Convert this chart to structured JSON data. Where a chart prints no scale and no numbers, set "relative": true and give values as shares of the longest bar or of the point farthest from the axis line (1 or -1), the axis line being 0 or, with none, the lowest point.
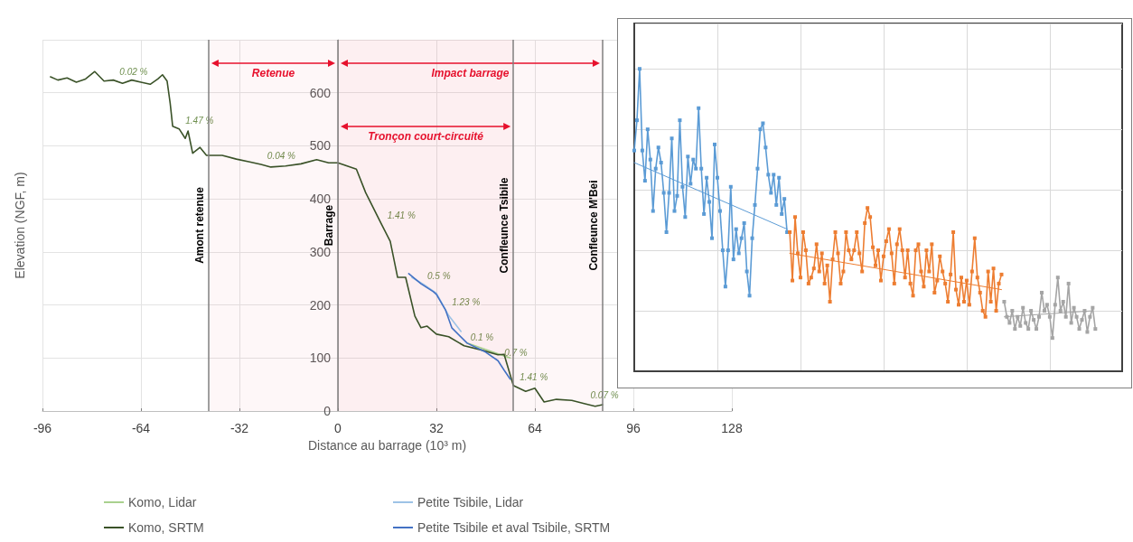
{
  "chart_data": [
    {
      "type": "line",
      "xlabel": "Distance au barrage (10³ m)",
      "ylabel": "Elevation (NGF, m)",
      "xlim": [
        -96,
        128
      ],
      "xticks": [
        -96,
        -64,
        -32,
        0,
        32,
        64,
        96,
        128
      ],
      "ylim": [
        0,
        700
      ],
      "yticks": [
        0,
        100,
        200,
        300,
        400,
        500,
        600
      ],
      "grid": true,
      "legend": "bottom",
      "marker": "none",
      "line_style": "solid",
      "series": [
        {
          "name": "Komo, Lidar",
          "color": "#a9d18e",
          "x": [
            42,
            46,
            50,
            54,
            56
          ],
          "values": [
            128,
            120,
            112,
            104,
            100
          ]
        },
        {
          "name": "Petite Tsibile, Lidar",
          "color": "#9dc3e6",
          "x": [
            24,
            28,
            32,
            36,
            40
          ],
          "values": [
            252,
            238,
            222,
            180,
            150
          ]
        },
        {
          "name": "Komo, SRTM",
          "color": "#3a5228",
          "x": [
            -93.4,
            -91,
            -88,
            -85,
            -82,
            -79,
            -76,
            -73,
            -70,
            -67,
            -64,
            -61,
            -58.5,
            -57,
            -55.5,
            -54.5,
            -53.7,
            -51.6,
            -49.6,
            -48.7,
            -47.2,
            -44.8,
            -42.7,
            -37.6,
            -33,
            -29,
            -25,
            -21.8,
            -17,
            -12,
            -6.9,
            -3,
            0,
            3,
            6,
            9,
            14,
            17,
            19.4,
            22,
            25,
            27,
            29,
            32,
            36,
            41,
            46,
            52,
            54,
            57,
            61,
            64,
            67,
            71,
            76,
            80,
            83.6,
            86
          ],
          "values": [
            630,
            624,
            628,
            620,
            626,
            640,
            622,
            624,
            618,
            624,
            620,
            616,
            626,
            634,
            622,
            580,
            537,
            532,
            514,
            528,
            486,
            497,
            482,
            482,
            475,
            470,
            465,
            460,
            462,
            466,
            474,
            468,
            468,
            462,
            456,
            412,
            354,
            320,
            252,
            252,
            179,
            157,
            160,
            145,
            140,
            123,
            116,
            106,
            107,
            48,
            37,
            43,
            17,
            22,
            20,
            14,
            9,
            12
          ]
        },
        {
          "name": "Petite Tsibile et aval Tsibile, SRTM",
          "color": "#4472c4",
          "x": [
            23,
            27,
            31,
            32,
            35,
            37,
            42,
            48,
            52,
            54,
            56
          ],
          "values": [
            259,
            240,
            225,
            220,
            190,
            157,
            128,
            111,
            95,
            77,
            60
          ]
        }
      ],
      "ref_lines": [
        {
          "axis": "x",
          "value": -42,
          "label": "Amont retenue",
          "color": "#7f7f7f"
        },
        {
          "axis": "x",
          "value": 0,
          "label": "Barrage",
          "color": "#7f7f7f"
        },
        {
          "axis": "x",
          "value": 57,
          "label": "Confleunce Tsibile",
          "color": "#7f7f7f"
        },
        {
          "axis": "x",
          "value": 86,
          "label": "Confleunce M'Bei",
          "color": "#7f7f7f"
        }
      ],
      "bands": [
        {
          "axis": "x",
          "from": -42,
          "to": 0,
          "label": "Retenue",
          "color": "#e8112d"
        },
        {
          "axis": "x",
          "from": 0,
          "to": 86,
          "label": "Impact barrage",
          "color": "#e8112d"
        },
        {
          "axis": "x",
          "from": 0,
          "to": 57,
          "label": "Tronçon court-circuité",
          "color": "#e8112d"
        }
      ],
      "annotations": [
        {
          "text": "0.02 %",
          "x": -73,
          "y": 624
        },
        {
          "text": "1.47 %",
          "x": -51.6,
          "y": 532
        },
        {
          "text": "0.04 %",
          "x": -25,
          "y": 465
        },
        {
          "text": "1.41 %",
          "x": 14,
          "y": 354
        },
        {
          "text": "0.5 %",
          "x": 27,
          "y": 240
        },
        {
          "text": "1.23 %",
          "x": 35,
          "y": 190
        },
        {
          "text": "0.1 %",
          "x": 41,
          "y": 123
        },
        {
          "text": "0.7 %",
          "x": 52,
          "y": 95
        },
        {
          "text": "1.41 %",
          "x": 57,
          "y": 48
        },
        {
          "text": "0.07 %",
          "x": 80,
          "y": 14
        }
      ]
    },
    {
      "type": "line",
      "relative": true,
      "grid": true,
      "marker": "square",
      "categories": [
        null,
        null,
        null,
        null,
        null,
        null,
        null,
        null,
        null,
        null,
        null,
        null,
        null,
        null,
        null,
        null,
        null,
        null,
        null,
        null,
        null,
        null,
        null,
        null,
        null,
        null,
        null,
        null,
        null,
        null,
        null,
        null,
        null,
        null,
        null,
        null,
        null,
        null,
        null,
        null,
        null,
        null,
        null,
        null,
        null,
        null,
        null,
        null,
        null,
        null,
        null,
        null,
        null,
        null,
        null,
        null,
        null,
        null,
        null,
        null,
        null,
        null,
        null,
        null,
        null,
        null,
        null,
        null,
        null,
        null,
        null,
        null,
        null,
        null,
        null,
        null,
        null,
        null,
        null,
        null,
        null,
        null,
        null,
        null,
        null,
        null,
        null,
        null,
        null,
        null,
        null,
        null,
        null,
        null,
        null,
        null,
        null,
        null,
        null,
        null,
        null,
        null,
        null,
        null,
        null,
        null,
        null,
        null,
        null,
        null,
        null,
        null,
        null,
        null,
        null,
        null,
        null,
        null,
        null,
        null,
        null,
        null,
        null,
        null,
        null,
        null,
        null,
        null,
        null,
        null,
        null,
        null,
        null,
        null,
        null,
        null,
        null,
        null,
        null,
        null,
        null,
        null,
        null,
        null,
        null,
        null,
        null,
        null,
        null,
        null,
        null,
        null,
        null,
        null,
        null,
        null,
        null,
        null,
        null,
        null,
        null,
        null,
        null,
        null,
        null,
        null,
        null,
        null,
        null,
        null,
        null,
        null,
        null,
        null,
        null,
        null,
        null,
        null,
        null,
        null,
        null,
        null,
        null
      ],
      "series": [
        {
          "color": "#5b9bd5",
          "values": [
            0.73,
            0.83,
            1.0,
            0.73,
            0.63,
            0.8,
            0.7,
            0.53,
            0.67,
            0.74,
            0.69,
            0.59,
            0.46,
            0.59,
            0.77,
            0.53,
            0.58,
            0.83,
            0.61,
            0.51,
            0.71,
            0.62,
            0.7,
            0.67,
            0.87,
            0.67,
            0.52,
            0.64,
            0.56,
            0.44,
            0.75,
            0.64,
            0.53,
            0.4,
            0.28,
            0.4,
            0.61,
            0.37,
            0.47,
            0.39,
            0.44,
            0.49,
            0.33,
            0.25,
            0.44,
            0.55,
            0.67,
            0.8,
            0.82,
            0.74,
            0.65,
            0.59,
            0.65,
            0.55,
            0.64,
            0.52,
            0.57,
            0.46,
            null,
            null,
            null,
            null,
            null,
            null,
            null,
            null,
            null,
            null,
            null,
            null,
            null,
            null,
            null,
            null,
            null,
            null,
            null,
            null,
            null,
            null,
            null,
            null,
            null,
            null,
            null,
            null,
            null,
            null,
            null,
            null,
            null,
            null,
            null,
            null,
            null,
            null,
            null,
            null,
            null,
            null,
            null,
            null,
            null,
            null,
            null,
            null,
            null,
            null,
            null,
            null,
            null,
            null,
            null,
            null,
            null,
            null,
            null,
            null,
            null,
            null,
            null,
            null,
            null,
            null,
            null,
            null,
            null,
            null,
            null,
            null,
            null,
            null,
            null,
            null,
            null,
            null,
            null,
            null,
            null,
            null,
            null,
            null,
            null,
            null,
            null,
            null,
            null,
            null,
            null,
            null,
            null,
            null,
            null,
            null,
            null,
            null,
            null,
            null,
            null,
            null,
            null,
            null,
            null,
            null,
            null,
            null,
            null,
            null,
            null,
            null,
            null,
            null,
            null,
            null,
            null,
            null,
            null,
            null,
            null,
            null,
            null,
            null,
            null
          ]
        },
        {
          "color": "#ed7d31",
          "values": [
            null,
            null,
            null,
            null,
            null,
            null,
            null,
            null,
            null,
            null,
            null,
            null,
            null,
            null,
            null,
            null,
            null,
            null,
            null,
            null,
            null,
            null,
            null,
            null,
            null,
            null,
            null,
            null,
            null,
            null,
            null,
            null,
            null,
            null,
            null,
            null,
            null,
            null,
            null,
            null,
            null,
            null,
            null,
            null,
            null,
            null,
            null,
            null,
            null,
            null,
            null,
            null,
            null,
            null,
            null,
            null,
            null,
            null,
            0.46,
            0.3,
            0.51,
            0.39,
            0.31,
            0.46,
            0.4,
            0.29,
            0.31,
            0.34,
            0.42,
            0.33,
            0.39,
            0.29,
            0.35,
            0.23,
            0.37,
            0.46,
            0.39,
            0.29,
            0.33,
            0.46,
            0.4,
            0.37,
            0.4,
            0.46,
            0.39,
            0.33,
            0.49,
            0.54,
            0.51,
            0.41,
            0.35,
            0.4,
            0.3,
            0.38,
            0.43,
            0.47,
            0.39,
            0.29,
            0.42,
            0.47,
            0.4,
            0.31,
            0.4,
            0.29,
            0.25,
            0.4,
            0.42,
            0.33,
            0.28,
            0.4,
            0.33,
            0.42,
            0.26,
            0.3,
            0.38,
            0.33,
            0.29,
            0.23,
            0.32,
            0.46,
            0.27,
            0.22,
            0.31,
            0.23,
            0.3,
            0.22,
            0.33,
            0.44,
            0.31,
            0.26,
            0.2,
            0.18,
            0.33,
            0.23,
            0.34,
            0.2,
            0.29,
            0.32,
            null,
            null,
            null,
            null,
            null,
            null,
            null,
            null,
            null,
            null,
            null,
            null,
            null,
            null,
            null,
            null,
            null,
            null,
            null,
            null,
            null,
            null,
            null,
            null,
            null,
            null,
            null,
            null,
            null,
            null,
            null,
            null,
            null,
            null,
            null,
            null,
            null,
            null,
            null,
            null,
            null,
            null,
            null,
            null,
            null
          ]
        },
        {
          "color": "#a5a5a5",
          "values": [
            null,
            null,
            null,
            null,
            null,
            null,
            null,
            null,
            null,
            null,
            null,
            null,
            null,
            null,
            null,
            null,
            null,
            null,
            null,
            null,
            null,
            null,
            null,
            null,
            null,
            null,
            null,
            null,
            null,
            null,
            null,
            null,
            null,
            null,
            null,
            null,
            null,
            null,
            null,
            null,
            null,
            null,
            null,
            null,
            null,
            null,
            null,
            null,
            null,
            null,
            null,
            null,
            null,
            null,
            null,
            null,
            null,
            null,
            null,
            null,
            null,
            null,
            null,
            null,
            null,
            null,
            null,
            null,
            null,
            null,
            null,
            null,
            null,
            null,
            null,
            null,
            null,
            null,
            null,
            null,
            null,
            null,
            null,
            null,
            null,
            null,
            null,
            null,
            null,
            null,
            null,
            null,
            null,
            null,
            null,
            null,
            null,
            null,
            null,
            null,
            null,
            null,
            null,
            null,
            null,
            null,
            null,
            null,
            null,
            null,
            null,
            null,
            null,
            null,
            null,
            null,
            null,
            null,
            null,
            null,
            null,
            null,
            null,
            null,
            null,
            null,
            null,
            null,
            null,
            null,
            null,
            null,
            null,
            null,
            null,
            null,
            null,
            null,
            0.23,
            0.18,
            0.16,
            0.2,
            0.14,
            0.18,
            0.15,
            0.21,
            0.16,
            0.14,
            0.2,
            0.17,
            0.14,
            0.18,
            0.26,
            0.2,
            0.22,
            0.18,
            0.11,
            0.22,
            0.31,
            0.2,
            0.23,
            0.18,
            0.29,
            0.16,
            0.21,
            0.18,
            0.14,
            0.17,
            0.2,
            0.13,
            0.18,
            0.21,
            0.14,
            null,
            null,
            null,
            null,
            null,
            null,
            null,
            null,
            null,
            null
          ]
        },
        {
          "color": "#5b9bd5",
          "marker": "none",
          "values": [
            0.69,
            null,
            null,
            null,
            null,
            null,
            null,
            null,
            null,
            null,
            null,
            null,
            null,
            null,
            null,
            null,
            null,
            null,
            null,
            null,
            null,
            null,
            null,
            null,
            null,
            null,
            null,
            null,
            null,
            null,
            null,
            null,
            null,
            null,
            null,
            null,
            null,
            null,
            null,
            null,
            null,
            null,
            null,
            null,
            null,
            null,
            null,
            null,
            null,
            null,
            null,
            null,
            null,
            null,
            null,
            null,
            null,
            0.47,
            null,
            null,
            null,
            null,
            null,
            null,
            null,
            null,
            null,
            null,
            null,
            null,
            null,
            null,
            null,
            null,
            null,
            null,
            null,
            null,
            null,
            null,
            null,
            null,
            null,
            null,
            null,
            null,
            null,
            null,
            null,
            null,
            null,
            null,
            null,
            null,
            null,
            null,
            null,
            null,
            null,
            null,
            null,
            null,
            null,
            null,
            null,
            null,
            null,
            null,
            null,
            null,
            null,
            null,
            null,
            null,
            null,
            null,
            null,
            null,
            null,
            null,
            null,
            null,
            null,
            null,
            null,
            null,
            null,
            null,
            null,
            null,
            null,
            null,
            null,
            null,
            null,
            null,
            null,
            null,
            null,
            null,
            null,
            null,
            null,
            null,
            null,
            null,
            null,
            null,
            null,
            null,
            null,
            null,
            null,
            null,
            null,
            null,
            null,
            null,
            null,
            null,
            null,
            null,
            null,
            null,
            null,
            null,
            null,
            null,
            null,
            null,
            null,
            null,
            null,
            null,
            null,
            null,
            null,
            null,
            null,
            null,
            null,
            null,
            null
          ]
        },
        {
          "color": "#ed7d31",
          "marker": "none",
          "values": [
            null,
            null,
            null,
            null,
            null,
            null,
            null,
            null,
            null,
            null,
            null,
            null,
            null,
            null,
            null,
            null,
            null,
            null,
            null,
            null,
            null,
            null,
            null,
            null,
            null,
            null,
            null,
            null,
            null,
            null,
            null,
            null,
            null,
            null,
            null,
            null,
            null,
            null,
            null,
            null,
            null,
            null,
            null,
            null,
            null,
            null,
            null,
            null,
            null,
            null,
            null,
            null,
            null,
            null,
            null,
            null,
            null,
            null,
            0.39,
            null,
            null,
            null,
            null,
            null,
            null,
            null,
            null,
            null,
            null,
            null,
            null,
            null,
            null,
            null,
            null,
            null,
            null,
            null,
            null,
            null,
            null,
            null,
            null,
            null,
            null,
            null,
            null,
            null,
            null,
            null,
            null,
            null,
            null,
            null,
            null,
            null,
            null,
            null,
            null,
            null,
            null,
            null,
            null,
            null,
            null,
            null,
            null,
            null,
            null,
            null,
            null,
            null,
            null,
            null,
            null,
            null,
            null,
            null,
            null,
            null,
            null,
            null,
            null,
            null,
            null,
            null,
            null,
            null,
            null,
            null,
            null,
            null,
            null,
            null,
            null,
            null,
            null,
            0.27,
            null,
            null,
            null,
            null,
            null,
            null,
            null,
            null,
            null,
            null,
            null,
            null,
            null,
            null,
            null,
            null,
            null,
            null,
            null,
            null,
            null,
            null,
            null,
            null,
            null,
            null,
            null,
            null,
            null,
            null,
            null,
            null,
            null,
            null,
            null,
            null,
            null,
            null,
            null,
            null,
            null,
            null,
            null,
            null,
            null
          ]
        },
        {
          "color": "#a5a5a5",
          "marker": "none",
          "values": [
            null,
            null,
            null,
            null,
            null,
            null,
            null,
            null,
            null,
            null,
            null,
            null,
            null,
            null,
            null,
            null,
            null,
            null,
            null,
            null,
            null,
            null,
            null,
            null,
            null,
            null,
            null,
            null,
            null,
            null,
            null,
            null,
            null,
            null,
            null,
            null,
            null,
            null,
            null,
            null,
            null,
            null,
            null,
            null,
            null,
            null,
            null,
            null,
            null,
            null,
            null,
            null,
            null,
            null,
            null,
            null,
            null,
            null,
            null,
            null,
            null,
            null,
            null,
            null,
            null,
            null,
            null,
            null,
            null,
            null,
            null,
            null,
            null,
            null,
            null,
            null,
            null,
            null,
            null,
            null,
            null,
            null,
            null,
            null,
            null,
            null,
            null,
            null,
            null,
            null,
            null,
            null,
            null,
            null,
            null,
            null,
            null,
            null,
            null,
            null,
            null,
            null,
            null,
            null,
            null,
            null,
            null,
            null,
            null,
            null,
            null,
            null,
            null,
            null,
            null,
            null,
            null,
            null,
            null,
            null,
            null,
            null,
            null,
            null,
            null,
            null,
            null,
            null,
            null,
            null,
            null,
            null,
            null,
            null,
            null,
            null,
            null,
            null,
            0.18,
            null,
            null,
            null,
            null,
            null,
            null,
            null,
            null,
            null,
            null,
            null,
            null,
            null,
            null,
            null,
            null,
            null,
            null,
            null,
            null,
            null,
            null,
            null,
            null,
            null,
            null,
            null,
            null,
            null,
            null,
            null,
            null,
            0.2,
            null,
            null,
            null,
            null,
            null,
            null,
            null,
            null,
            null,
            null,
            null
          ]
        }
      ]
    }
  ]
}
